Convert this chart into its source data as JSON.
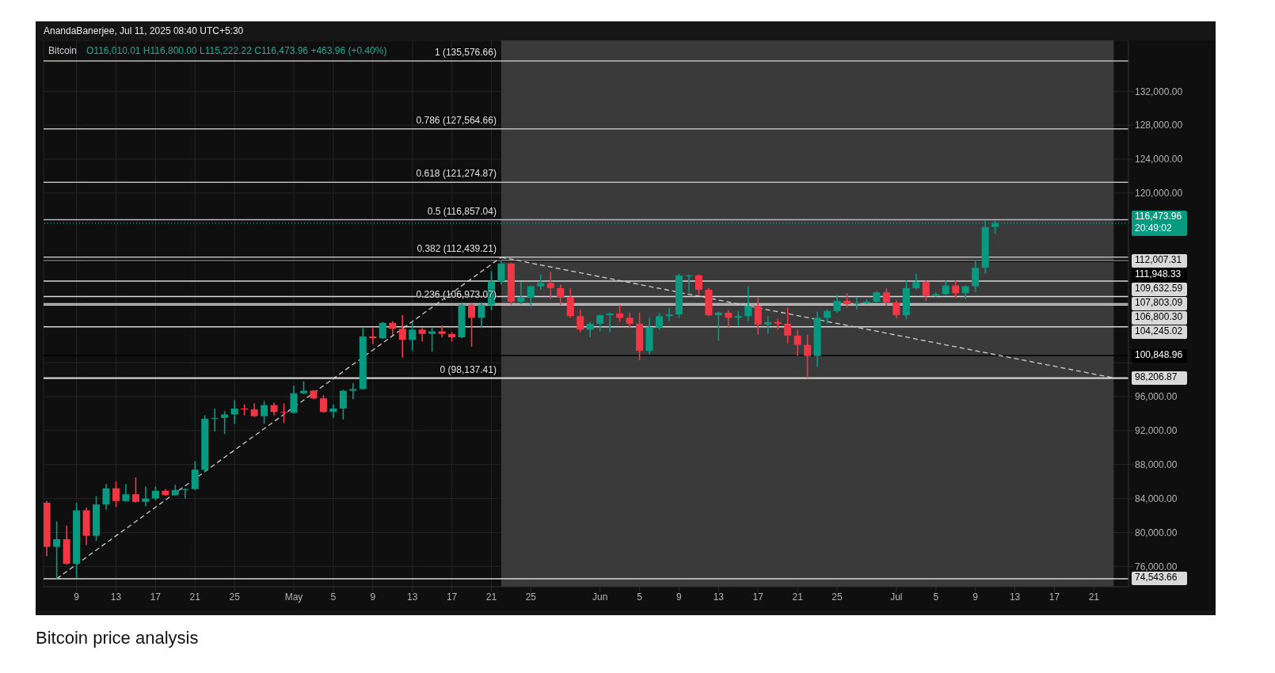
{
  "chart_data": {
    "type": "candlestick",
    "title": "Bitcoin",
    "subtitle": "O116,010.01 H116,800.00 L115,222.22 C116,473.96 +463.96 (+0.40%)",
    "x": [
      "2025-04-06",
      "2025-04-07",
      "2025-04-08",
      "2025-04-09",
      "2025-04-10",
      "2025-04-11",
      "2025-04-12",
      "2025-04-13",
      "2025-04-14",
      "2025-04-15",
      "2025-04-16",
      "2025-04-17",
      "2025-04-18",
      "2025-04-19",
      "2025-04-20",
      "2025-04-21",
      "2025-04-22",
      "2025-04-23",
      "2025-04-24",
      "2025-04-25",
      "2025-04-26",
      "2025-04-27",
      "2025-04-28",
      "2025-04-29",
      "2025-04-30",
      "2025-05-01",
      "2025-05-02",
      "2025-05-03",
      "2025-05-04",
      "2025-05-05",
      "2025-05-06",
      "2025-05-07",
      "2025-05-08",
      "2025-05-09",
      "2025-05-10",
      "2025-05-11",
      "2025-05-12",
      "2025-05-13",
      "2025-05-14",
      "2025-05-15",
      "2025-05-16",
      "2025-05-17",
      "2025-05-18",
      "2025-05-19",
      "2025-05-20",
      "2025-05-21",
      "2025-05-22",
      "2025-05-23",
      "2025-05-24",
      "2025-05-25",
      "2025-05-26",
      "2025-05-27",
      "2025-05-28",
      "2025-05-29",
      "2025-05-30",
      "2025-05-31",
      "2025-06-01",
      "2025-06-02",
      "2025-06-03",
      "2025-06-04",
      "2025-06-05",
      "2025-06-06",
      "2025-06-07",
      "2025-06-08",
      "2025-06-09",
      "2025-06-10",
      "2025-06-11",
      "2025-06-12",
      "2025-06-13",
      "2025-06-14",
      "2025-06-15",
      "2025-06-16",
      "2025-06-17",
      "2025-06-18",
      "2025-06-19",
      "2025-06-20",
      "2025-06-21",
      "2025-06-22",
      "2025-06-23",
      "2025-06-24",
      "2025-06-25",
      "2025-06-26",
      "2025-06-27",
      "2025-06-28",
      "2025-06-29",
      "2025-06-30",
      "2025-07-01",
      "2025-07-02",
      "2025-07-03",
      "2025-07-04",
      "2025-07-05",
      "2025-07-06",
      "2025-07-07",
      "2025-07-08",
      "2025-07-09",
      "2025-07-10",
      "2025-07-11"
    ],
    "ohlc": [
      [
        83500,
        83700,
        77200,
        78300
      ],
      [
        78300,
        81300,
        74500,
        79200
      ],
      [
        79200,
        80800,
        76200,
        76300
      ],
      [
        76300,
        83500,
        74600,
        82600
      ],
      [
        82600,
        82900,
        78500,
        79600
      ],
      [
        79600,
        84300,
        79000,
        83300
      ],
      [
        83300,
        85700,
        82700,
        85200
      ],
      [
        85200,
        86000,
        83000,
        83700
      ],
      [
        83700,
        85700,
        83600,
        84500
      ],
      [
        84500,
        86500,
        83500,
        83600
      ],
      [
        83600,
        85400,
        83100,
        84000
      ],
      [
        84000,
        85400,
        83800,
        84900
      ],
      [
        84900,
        85100,
        84300,
        84400
      ],
      [
        84400,
        85600,
        84300,
        85000
      ],
      [
        85000,
        85200,
        84000,
        85100
      ],
      [
        85100,
        88400,
        85000,
        87400
      ],
      [
        87400,
        93800,
        87100,
        93400
      ],
      [
        93400,
        94600,
        91900,
        93500
      ],
      [
        93500,
        94300,
        91600,
        93900
      ],
      [
        93900,
        95600,
        92800,
        94600
      ],
      [
        94600,
        95100,
        93800,
        94500
      ],
      [
        94500,
        95200,
        93600,
        93700
      ],
      [
        93700,
        95500,
        92800,
        95000
      ],
      [
        95000,
        95300,
        93800,
        94200
      ],
      [
        94200,
        95200,
        92900,
        94100
      ],
      [
        94100,
        97300,
        94000,
        96400
      ],
      [
        96400,
        97800,
        96300,
        96700
      ],
      [
        96700,
        96800,
        95700,
        95800
      ],
      [
        95800,
        96200,
        94100,
        94200
      ],
      [
        94200,
        95100,
        93500,
        94600
      ],
      [
        94600,
        96800,
        93300,
        96700
      ],
      [
        96700,
        97600,
        95700,
        96900
      ],
      [
        96900,
        104100,
        96800,
        103100
      ],
      [
        103100,
        104100,
        102200,
        102900
      ],
      [
        102900,
        104800,
        102800,
        104700
      ],
      [
        104700,
        104900,
        103300,
        104000
      ],
      [
        104000,
        105600,
        100600,
        102700
      ],
      [
        102700,
        104800,
        101400,
        103900
      ],
      [
        103900,
        104100,
        102500,
        103400
      ],
      [
        103400,
        104100,
        101300,
        103700
      ],
      [
        103700,
        104400,
        103000,
        103400
      ],
      [
        103400,
        103600,
        102500,
        103000
      ],
      [
        103000,
        107100,
        102900,
        106800
      ],
      [
        106800,
        107100,
        101900,
        105300
      ],
      [
        105300,
        107100,
        104100,
        106800
      ],
      [
        106800,
        110800,
        106200,
        109600
      ],
      [
        109600,
        112000,
        109200,
        111700
      ],
      [
        111700,
        111800,
        106800,
        107200
      ],
      [
        107200,
        109500,
        106900,
        107700
      ],
      [
        107700,
        109100,
        106600,
        109000
      ],
      [
        109000,
        110400,
        108600,
        109400
      ],
      [
        109400,
        110700,
        107500,
        108800
      ],
      [
        108800,
        109200,
        106800,
        107700
      ],
      [
        107700,
        108800,
        105300,
        105500
      ],
      [
        105500,
        106300,
        103600,
        103900
      ],
      [
        103900,
        104800,
        103000,
        104600
      ],
      [
        104600,
        105700,
        103700,
        105600
      ],
      [
        105600,
        105900,
        103600,
        105800
      ],
      [
        105800,
        106800,
        104800,
        105300
      ],
      [
        105300,
        105900,
        104100,
        104600
      ],
      [
        104600,
        105900,
        100300,
        101400
      ],
      [
        101400,
        105300,
        101000,
        104200
      ],
      [
        104200,
        105900,
        103900,
        105500
      ],
      [
        105500,
        106500,
        104900,
        105700
      ],
      [
        105700,
        110500,
        105300,
        110300
      ],
      [
        110200,
        110400,
        108300,
        110300
      ],
      [
        110300,
        110400,
        108000,
        108600
      ],
      [
        108600,
        108800,
        105500,
        105600
      ],
      [
        105600,
        106000,
        102600,
        105900
      ],
      [
        105900,
        106200,
        104200,
        105300
      ],
      [
        105300,
        106100,
        104400,
        105500
      ],
      [
        105500,
        109000,
        104900,
        106700
      ],
      [
        106700,
        107700,
        103300,
        104500
      ],
      [
        104500,
        105500,
        103400,
        104800
      ],
      [
        104800,
        105200,
        103900,
        104600
      ],
      [
        104600,
        106500,
        102300,
        103200
      ],
      [
        103200,
        103900,
        100800,
        102100
      ],
      [
        102100,
        103300,
        98200,
        100800
      ],
      [
        100800,
        106000,
        99500,
        105300
      ],
      [
        105300,
        106300,
        104600,
        106100
      ],
      [
        106100,
        108000,
        105900,
        107300
      ],
      [
        107300,
        108200,
        106500,
        106900
      ],
      [
        106900,
        107700,
        106300,
        107000
      ],
      [
        107000,
        107500,
        106900,
        107200
      ],
      [
        107200,
        108400,
        107100,
        108300
      ],
      [
        108300,
        108800,
        106700,
        107100
      ],
      [
        107100,
        107400,
        105200,
        105600
      ],
      [
        105600,
        109700,
        105100,
        108800
      ],
      [
        108800,
        110500,
        108600,
        109500
      ],
      [
        109500,
        109700,
        107300,
        107900
      ],
      [
        107900,
        108300,
        107800,
        108100
      ],
      [
        108100,
        109700,
        108000,
        109100
      ],
      [
        109100,
        109700,
        107600,
        108200
      ],
      [
        108200,
        109100,
        107500,
        109000
      ],
      [
        109000,
        112000,
        108300,
        111200
      ],
      [
        111200,
        116800,
        110500,
        116000
      ],
      [
        116010.01,
        116800,
        115222.22,
        116473.96
      ]
    ],
    "colors": [
      "#f23645",
      "#089981",
      "#f23645",
      "#089981",
      "#f23645",
      "#089981",
      "#089981",
      "#f23645",
      "#089981",
      "#f23645",
      "#089981",
      "#089981",
      "#f23645",
      "#089981",
      "#089981",
      "#089981",
      "#089981",
      "#089981",
      "#089981",
      "#089981",
      "#f23645",
      "#f23645",
      "#089981",
      "#f23645",
      "#f23645",
      "#089981",
      "#089981",
      "#f23645",
      "#f23645",
      "#089981",
      "#089981",
      "#089981",
      "#089981",
      "#f23645",
      "#089981",
      "#f23645",
      "#f23645",
      "#089981",
      "#f23645",
      "#089981",
      "#f23645",
      "#f23645",
      "#089981",
      "#f23645",
      "#089981",
      "#089981",
      "#089981",
      "#f23645",
      "#089981",
      "#089981",
      "#089981",
      "#f23645",
      "#f23645",
      "#f23645",
      "#f23645",
      "#089981",
      "#089981",
      "#089981",
      "#f23645",
      "#f23645",
      "#f23645",
      "#089981",
      "#089981",
      "#089981",
      "#089981",
      "#089981",
      "#f23645",
      "#f23645",
      "#089981",
      "#f23645",
      "#089981",
      "#089981",
      "#f23645",
      "#089981",
      "#f23645",
      "#f23645",
      "#f23645",
      "#f23645",
      "#089981",
      "#089981",
      "#089981",
      "#f23645",
      "#089981",
      "#089981",
      "#089981",
      "#f23645",
      "#f23645",
      "#089981",
      "#089981",
      "#f23645",
      "#089981",
      "#089981",
      "#f23645",
      "#089981",
      "#089981",
      "#089981",
      "#089981"
    ],
    "series": [
      {
        "type": "line",
        "x": [
          "2025-04-07",
          "2025-05-22"
        ],
        "values": [
          74543.66,
          112439.21
        ],
        "color": "#cfcfcf",
        "line_style": "dashed"
      },
      {
        "type": "line",
        "x": [
          "2025-05-22",
          "2025-07-23"
        ],
        "values": [
          112439.21,
          98206.87
        ],
        "color": "#cfcfcf",
        "line_style": "dashed"
      }
    ],
    "xlim": [
      "2025-04-05T16:00",
      "2025-07-24T12:00"
    ],
    "xticks": [
      {
        "value": "2025-04-09",
        "label": "9"
      },
      {
        "value": "2025-04-13",
        "label": "13"
      },
      {
        "value": "2025-04-17",
        "label": "17"
      },
      {
        "value": "2025-04-21",
        "label": "21"
      },
      {
        "value": "2025-04-25",
        "label": "25"
      },
      {
        "value": "2025-05-01",
        "label": "May"
      },
      {
        "value": "2025-05-05",
        "label": "5"
      },
      {
        "value": "2025-05-09",
        "label": "9"
      },
      {
        "value": "2025-05-13",
        "label": "13"
      },
      {
        "value": "2025-05-17",
        "label": "17"
      },
      {
        "value": "2025-05-21",
        "label": "21"
      },
      {
        "value": "2025-05-25",
        "label": "25"
      },
      {
        "value": "2025-06-01",
        "label": "Jun"
      },
      {
        "value": "2025-06-05",
        "label": "5"
      },
      {
        "value": "2025-06-09",
        "label": "9"
      },
      {
        "value": "2025-06-13",
        "label": "13"
      },
      {
        "value": "2025-06-17",
        "label": "17"
      },
      {
        "value": "2025-06-21",
        "label": "21"
      },
      {
        "value": "2025-06-25",
        "label": "25"
      },
      {
        "value": "2025-07-01",
        "label": "Jul"
      },
      {
        "value": "2025-07-05",
        "label": "5"
      },
      {
        "value": "2025-07-09",
        "label": "9"
      },
      {
        "value": "2025-07-13",
        "label": "13"
      },
      {
        "value": "2025-07-17",
        "label": "17"
      },
      {
        "value": "2025-07-21",
        "label": "21"
      }
    ],
    "ylim": [
      73600,
      138000
    ],
    "yticks": [
      {
        "value": 76000,
        "label": "76,000.00"
      },
      {
        "value": 80000,
        "label": "80,000.00"
      },
      {
        "value": 84000,
        "label": "84,000.00"
      },
      {
        "value": 88000,
        "label": "88,000.00"
      },
      {
        "value": 92000,
        "label": "92,000.00"
      },
      {
        "value": 96000,
        "label": "96,000.00"
      },
      {
        "value": 100000,
        "label": null
      },
      {
        "value": 120000,
        "label": "120,000.00"
      },
      {
        "value": 124000,
        "label": "124,000.00"
      },
      {
        "value": 128000,
        "label": "128,000.00"
      },
      {
        "value": 132000,
        "label": "132,000.00"
      }
    ],
    "grid": true,
    "bands": [
      {
        "axis": "x",
        "from": "2025-05-22",
        "to": "2025-07-23",
        "color": "#3a3a3a"
      }
    ],
    "ref_lines": [
      {
        "axis": "y",
        "value": 135576.66,
        "color": "#bdbdbd"
      },
      {
        "axis": "y",
        "value": 127564.66,
        "color": "#bdbdbd"
      },
      {
        "axis": "y",
        "value": 121274.87,
        "color": "#bdbdbd"
      },
      {
        "axis": "y",
        "value": 116857.04,
        "color": "#bdbdbd"
      },
      {
        "axis": "y",
        "value": 112439.21,
        "color": "#bdbdbd"
      },
      {
        "axis": "y",
        "value": 106973.07,
        "color": "#bdbdbd"
      },
      {
        "axis": "y",
        "value": 98137.41,
        "color": "#bdbdbd"
      },
      {
        "axis": "y",
        "value": 116473.96,
        "label": "116,473.96\n20:49:02",
        "color": "#089981",
        "line_style": "dotted"
      },
      {
        "axis": "y",
        "value": 112007.31,
        "label": "112,007.31",
        "color": "#d9d9d9"
      },
      {
        "axis": "y",
        "value": 111948.33,
        "label": "111,948.33",
        "color": "#000000"
      },
      {
        "axis": "y",
        "value": 109632.59,
        "label": "109,632.59",
        "color": "#d9d9d9"
      },
      {
        "axis": "y",
        "value": 107803.09,
        "label": "107,803.09",
        "color": "#d9d9d9"
      },
      {
        "axis": "y",
        "value": 106800.3,
        "label": "106,800.30",
        "color": "#d9d9d9"
      },
      {
        "axis": "y",
        "value": 104245.02,
        "label": "104,245.02",
        "color": "#d9d9d9"
      },
      {
        "axis": "y",
        "value": 100848.96,
        "label": "100,848.96",
        "color": "#000000"
      },
      {
        "axis": "y",
        "value": 98206.87,
        "label": "98,206.87",
        "color": "#d9d9d9"
      },
      {
        "axis": "y",
        "value": 74543.66,
        "label": "74,543.66",
        "color": "#d9d9d9"
      }
    ],
    "annotations": [
      "AnandaBanerjee, Jul 11, 2025 08:40 UTC+5:30",
      {
        "text": "1 (135,576.66)",
        "x": "2025-05-22",
        "y": 135576.66
      },
      {
        "text": "0.786 (127,564.66)",
        "x": "2025-05-22",
        "y": 127564.66
      },
      {
        "text": "0.618 (121,274.87)",
        "x": "2025-05-22",
        "y": 121274.87
      },
      {
        "text": "0.5 (116,857.04)",
        "x": "2025-05-22",
        "y": 116857.04
      },
      {
        "text": "0.382 (112,439.21)",
        "x": "2025-05-22",
        "y": 112439.21
      },
      {
        "text": "0.236 (106,973.07)",
        "x": "2025-05-22",
        "y": 106973.07
      },
      {
        "text": "0 (98,137.41)",
        "x": "2025-05-22",
        "y": 98137.41
      },
      "Bitcoin price analysis"
    ]
  }
}
